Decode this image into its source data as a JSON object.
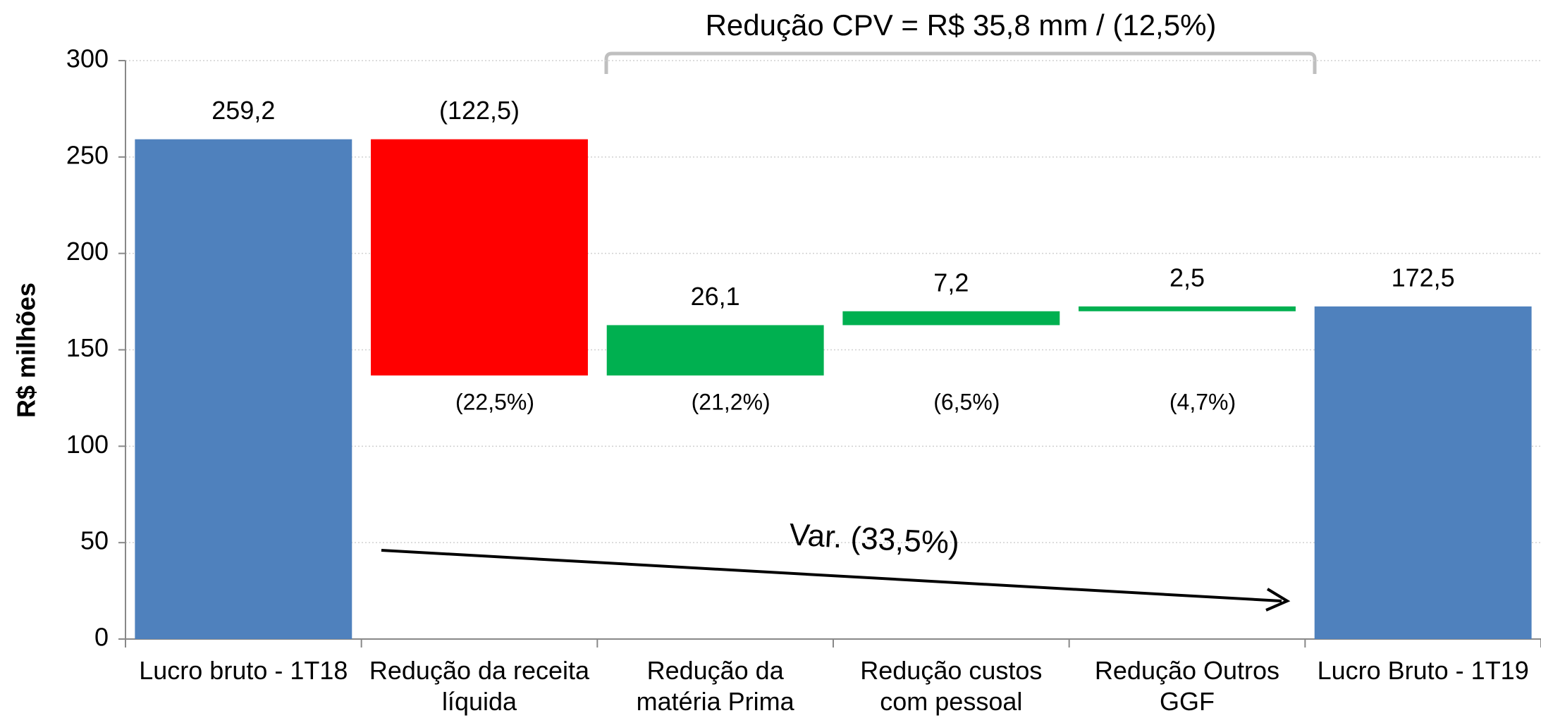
{
  "chart_data": {
    "type": "waterfall",
    "bracket_title": "Redução CPV = R$ 35,8 mm / (12,5%)",
    "arrow_label": "Var. (33,5%)",
    "y_label": "R$ milhões",
    "categories": [
      "Lucro bruto - 1T18",
      "Redução da receita líquida",
      "Redução da matéria Prima",
      "Redução custos com pessoal",
      "Redução Outros GGF",
      "Lucro Bruto - 1T19"
    ],
    "values": [
      259.2,
      -122.5,
      26.1,
      7.2,
      2.5,
      172.5
    ],
    "value_labels": [
      "259,2",
      "(122,5)",
      "26,1",
      "7,2",
      "2,5",
      "172,5"
    ],
    "pct_labels": [
      null,
      "(22,5%)",
      "(21,2%)",
      "(6,5%)",
      "(4,7%)",
      null
    ],
    "colors": [
      "#4f81bd",
      "#ff0000",
      "#00b050",
      "#00b050",
      "#00b050",
      "#4f81bd"
    ],
    "ylim": [
      0,
      300
    ],
    "yticks": [
      0,
      50,
      100,
      150,
      200,
      250,
      300
    ],
    "grid": true
  }
}
